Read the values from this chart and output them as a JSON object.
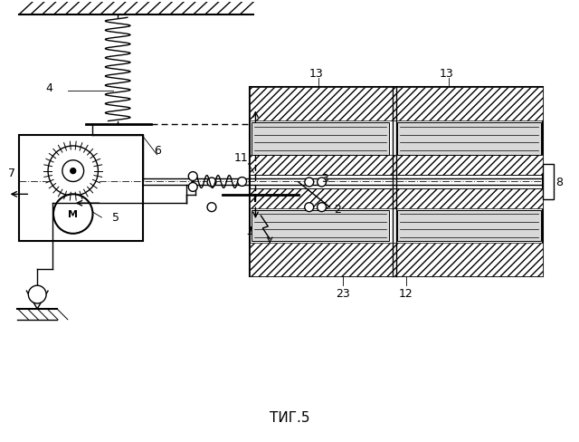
{
  "title": "ΤИГ.5",
  "bg_color": "#ffffff",
  "line_color": "#000000",
  "fig_width": 6.4,
  "fig_height": 4.89
}
